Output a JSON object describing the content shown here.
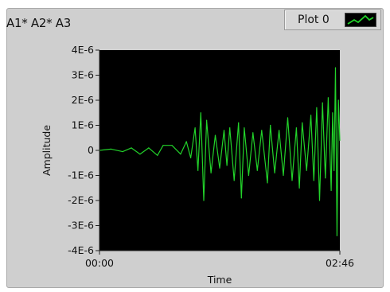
{
  "graph": {
    "title": "A1* A2* A3"
  },
  "legend": {
    "label": "Plot 0",
    "swatch_icon": "green-trace-icon"
  },
  "colors": {
    "plot_background": "#000000",
    "trace": "#22d22a",
    "panel": "#cfcfcf"
  },
  "chart_data": {
    "type": "line",
    "title": "A1* A2* A3",
    "xlabel": "Time",
    "ylabel": "Amplitude",
    "x_tick_labels": [
      "00:00",
      "02:46"
    ],
    "xlim": [
      0,
      166
    ],
    "y_tick_labels": [
      "4E-6",
      "3E-6",
      "2E-6",
      "1E-6",
      "0",
      "-1E-6",
      "-2E-6",
      "-3E-6",
      "-4E-6"
    ],
    "y_tick_values": [
      4e-06,
      3e-06,
      2e-06,
      1e-06,
      0,
      -1e-06,
      -2e-06,
      -3e-06,
      -4e-06
    ],
    "ylim": [
      -4e-06,
      4e-06
    ],
    "grid": false,
    "legend": "top-right",
    "series": [
      {
        "name": "Plot 0",
        "x": [
          0,
          8,
          16,
          22,
          28,
          34,
          40,
          44,
          50,
          56,
          60,
          63,
          66,
          68,
          70,
          72,
          74,
          77,
          80,
          83,
          86,
          88,
          90,
          93,
          96,
          98,
          100,
          103,
          106,
          109,
          112,
          116,
          118,
          121,
          124,
          127,
          130,
          133,
          136,
          138,
          140,
          143,
          146,
          148,
          150,
          152,
          154,
          156,
          158,
          160,
          161,
          162,
          163,
          164,
          165,
          166
        ],
        "y": [
          0,
          5e-08,
          -5e-08,
          1e-07,
          -1.5e-07,
          1e-07,
          -2e-07,
          2e-07,
          2e-07,
          -1.5e-07,
          3.5e-07,
          -3e-07,
          9e-07,
          -8e-07,
          1.5e-06,
          -2e-06,
          1.2e-06,
          -9e-07,
          6e-07,
          -7e-07,
          8e-07,
          -6e-07,
          9e-07,
          -1.2e-06,
          1.1e-06,
          -1.9e-06,
          9e-07,
          -1e-06,
          7e-07,
          -8e-07,
          8e-07,
          -1.3e-06,
          1e-06,
          -9e-07,
          8e-07,
          -1e-06,
          1.3e-06,
          -1.2e-06,
          9e-07,
          -1.5e-06,
          1.1e-06,
          -8e-07,
          1.4e-06,
          -1.2e-06,
          1.7e-06,
          -2e-06,
          1.9e-06,
          -1.1e-06,
          2.1e-06,
          -1.6e-06,
          1.5e-06,
          -8e-07,
          3.3e-06,
          -3.4e-06,
          2e-06,
          4e-07
        ]
      }
    ]
  }
}
